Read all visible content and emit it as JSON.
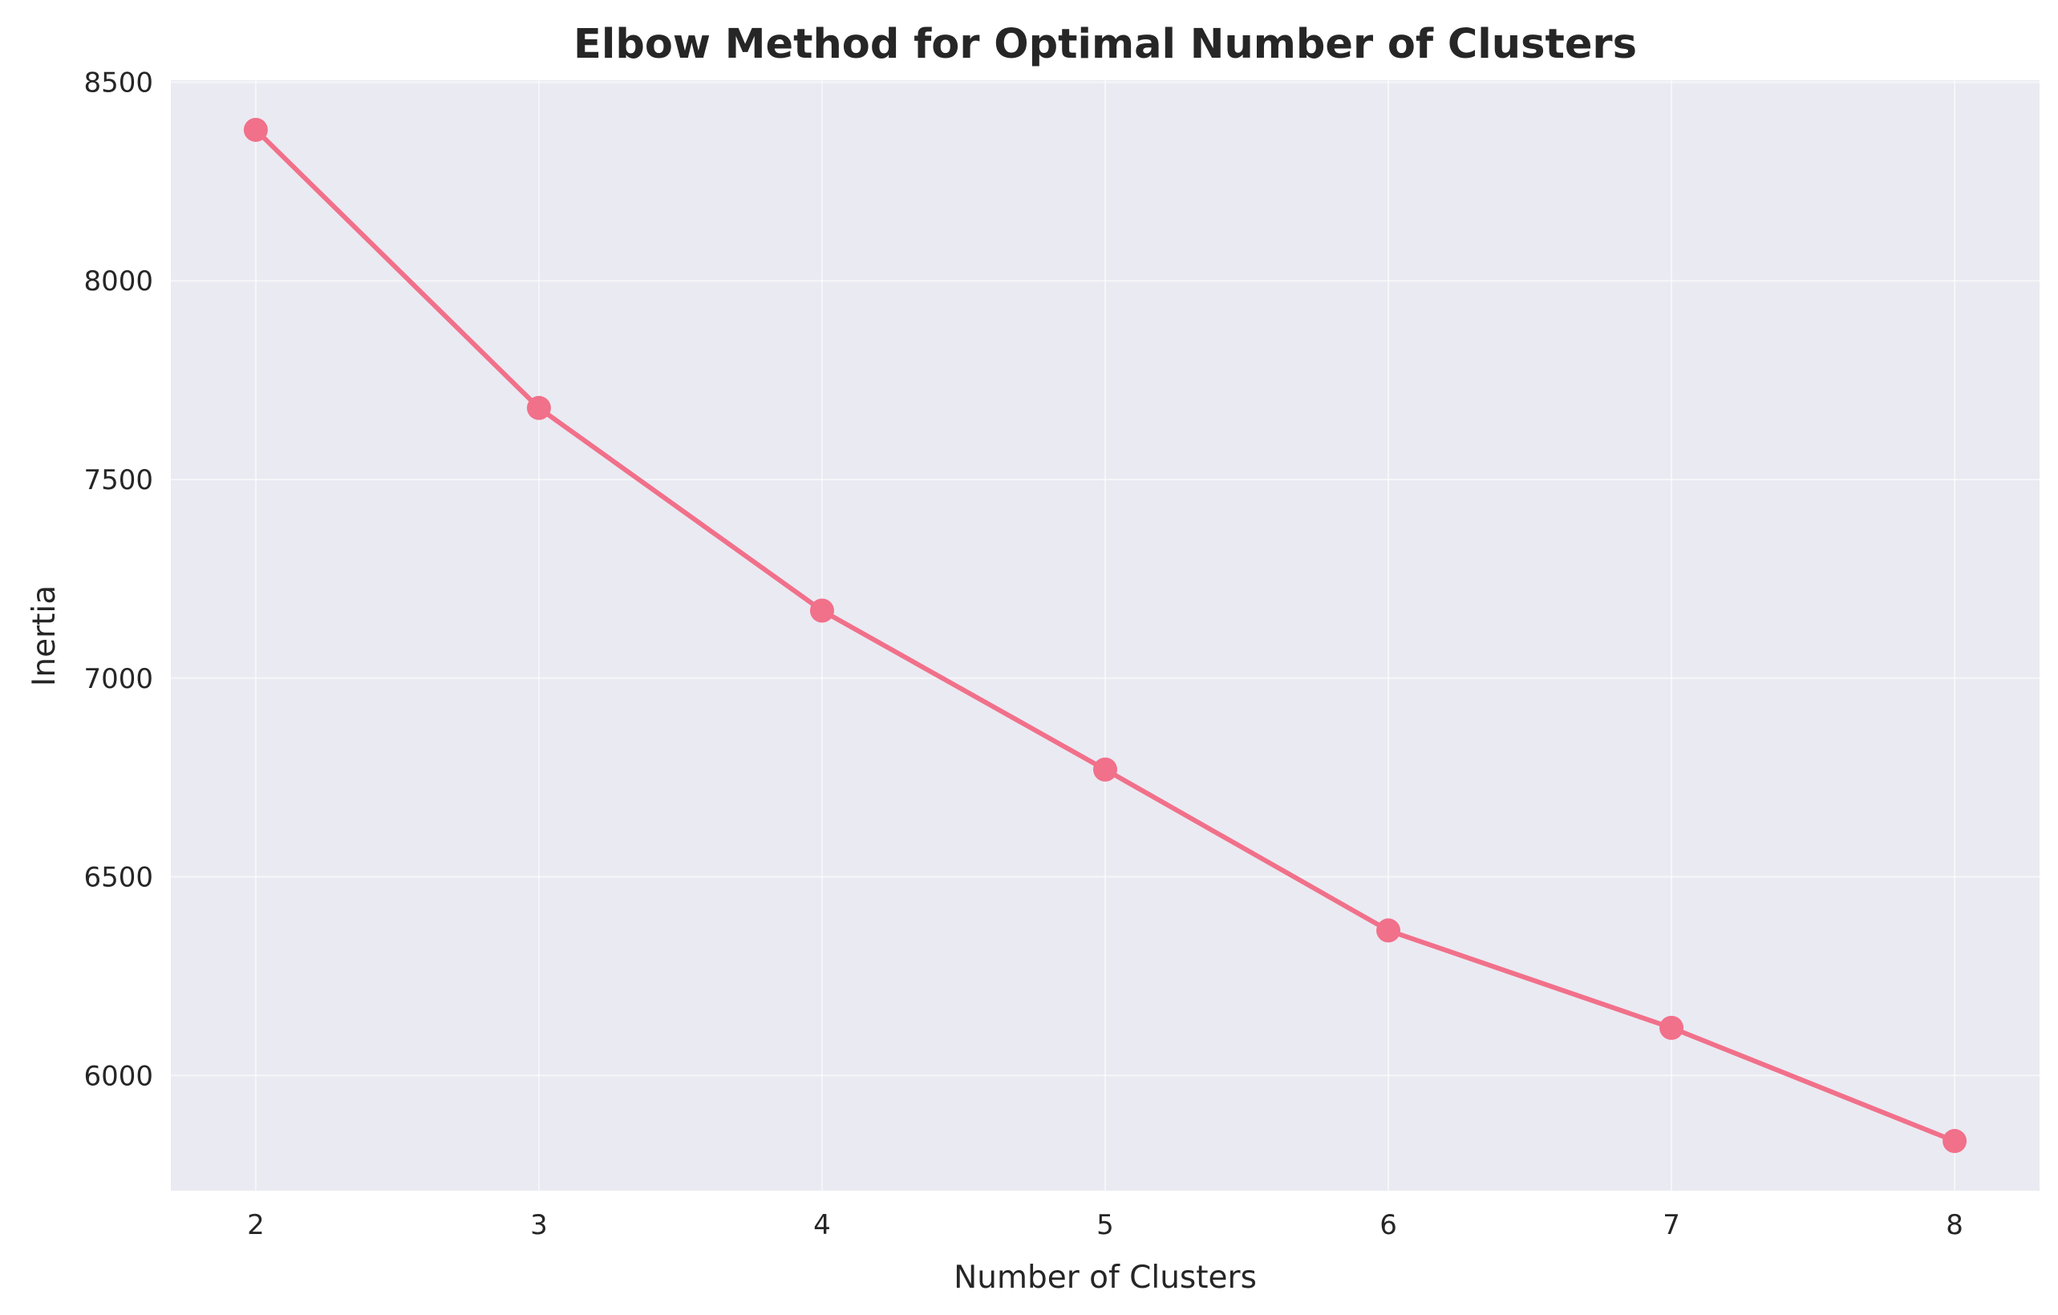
{
  "chart_data": {
    "type": "line",
    "title": "Elbow Method for Optimal Number of Clusters",
    "xlabel": "Number of Clusters",
    "ylabel": "Inertia",
    "x": [
      2,
      3,
      4,
      5,
      6,
      7,
      8
    ],
    "series": [
      {
        "values": [
          8380,
          7680,
          7170,
          6770,
          6365,
          6120,
          5835
        ],
        "color": "#f1708a",
        "marker": "circle"
      }
    ],
    "xticks": [
      "2",
      "3",
      "4",
      "5",
      "6",
      "7",
      "8"
    ],
    "yticks": [
      "6000",
      "6500",
      "7000",
      "7500",
      "8000",
      "8500"
    ],
    "xlim": [
      1.7,
      8.3
    ],
    "ylim": [
      5710,
      8505
    ],
    "grid": true,
    "legend": "none",
    "background_color": "#eaeaf2",
    "grid_color": "#ffffff"
  }
}
